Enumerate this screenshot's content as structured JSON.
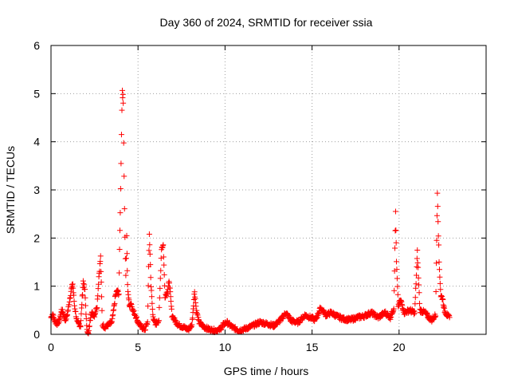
{
  "chart_data": {
    "type": "scatter",
    "title": "Day 360 of 2024, SRMTID for receiver ssia",
    "xlabel": "GPS time / hours",
    "ylabel": "SRMTID / TECUs",
    "xlim": [
      0,
      25
    ],
    "ylim": [
      0,
      6
    ],
    "xticks": [
      "0",
      "5",
      "10",
      "15",
      "20"
    ],
    "yticks": [
      "0",
      "1",
      "2",
      "3",
      "4",
      "5",
      "6"
    ],
    "grid": true,
    "marker": "plus",
    "color": "#ff0000",
    "series": [
      {
        "name": "SRMTID",
        "anchors": [
          [
            0.0,
            0.35
          ],
          [
            0.1,
            0.42
          ],
          [
            0.2,
            0.28
          ],
          [
            0.35,
            0.22
          ],
          [
            0.5,
            0.3
          ],
          [
            0.6,
            0.5
          ],
          [
            0.7,
            0.45
          ],
          [
            0.8,
            0.3
          ],
          [
            0.9,
            0.35
          ],
          [
            1.0,
            0.55
          ],
          [
            1.15,
            0.9
          ],
          [
            1.25,
            1.05
          ],
          [
            1.35,
            0.6
          ],
          [
            1.5,
            0.25
          ],
          [
            1.7,
            0.18
          ],
          [
            1.85,
            1.1
          ],
          [
            1.95,
            0.9
          ],
          [
            2.05,
            0.15
          ],
          [
            2.15,
            0.0
          ],
          [
            2.3,
            0.45
          ],
          [
            2.5,
            0.4
          ],
          [
            2.65,
            0.6
          ],
          [
            2.75,
            1.2
          ],
          [
            2.85,
            1.6
          ],
          [
            2.95,
            0.2
          ],
          [
            3.1,
            0.15
          ],
          [
            3.3,
            0.2
          ],
          [
            3.5,
            0.25
          ],
          [
            3.6,
            0.5
          ],
          [
            3.7,
            0.8
          ],
          [
            3.8,
            0.9
          ],
          [
            3.9,
            0.85
          ],
          [
            4.0,
            3.0
          ],
          [
            4.05,
            4.2
          ],
          [
            4.1,
            5.1
          ],
          [
            4.15,
            4.8
          ],
          [
            4.2,
            3.3
          ],
          [
            4.25,
            2.0
          ],
          [
            4.3,
            1.2
          ],
          [
            4.35,
            2.0
          ],
          [
            4.4,
            1.0
          ],
          [
            4.5,
            0.6
          ],
          [
            4.6,
            0.65
          ],
          [
            4.7,
            0.5
          ],
          [
            4.85,
            0.4
          ],
          [
            5.0,
            0.25
          ],
          [
            5.2,
            0.15
          ],
          [
            5.4,
            0.1
          ],
          [
            5.55,
            0.25
          ],
          [
            5.65,
            2.1
          ],
          [
            5.75,
            1.0
          ],
          [
            5.85,
            0.4
          ],
          [
            6.0,
            0.2
          ],
          [
            6.2,
            0.3
          ],
          [
            6.35,
            1.8
          ],
          [
            6.45,
            1.85
          ],
          [
            6.55,
            0.8
          ],
          [
            6.7,
            0.9
          ],
          [
            6.8,
            1.1
          ],
          [
            6.95,
            0.4
          ],
          [
            7.1,
            0.3
          ],
          [
            7.3,
            0.2
          ],
          [
            7.6,
            0.15
          ],
          [
            7.9,
            0.1
          ],
          [
            8.1,
            0.2
          ],
          [
            8.25,
            0.9
          ],
          [
            8.35,
            0.5
          ],
          [
            8.5,
            0.25
          ],
          [
            8.8,
            0.15
          ],
          [
            9.1,
            0.1
          ],
          [
            9.4,
            0.08
          ],
          [
            9.7,
            0.1
          ],
          [
            9.9,
            0.2
          ],
          [
            10.1,
            0.25
          ],
          [
            10.4,
            0.15
          ],
          [
            10.8,
            0.08
          ],
          [
            11.2,
            0.12
          ],
          [
            11.6,
            0.18
          ],
          [
            12.0,
            0.25
          ],
          [
            12.4,
            0.22
          ],
          [
            12.8,
            0.18
          ],
          [
            13.2,
            0.3
          ],
          [
            13.5,
            0.45
          ],
          [
            13.8,
            0.28
          ],
          [
            14.2,
            0.25
          ],
          [
            14.6,
            0.4
          ],
          [
            14.9,
            0.35
          ],
          [
            15.2,
            0.3
          ],
          [
            15.5,
            0.55
          ],
          [
            15.8,
            0.4
          ],
          [
            16.1,
            0.45
          ],
          [
            16.4,
            0.38
          ],
          [
            16.8,
            0.32
          ],
          [
            17.2,
            0.3
          ],
          [
            17.6,
            0.35
          ],
          [
            18.0,
            0.38
          ],
          [
            18.4,
            0.45
          ],
          [
            18.8,
            0.35
          ],
          [
            19.2,
            0.45
          ],
          [
            19.5,
            0.35
          ],
          [
            19.7,
            0.55
          ],
          [
            19.8,
            2.55
          ],
          [
            19.85,
            1.5
          ],
          [
            19.95,
            0.6
          ],
          [
            20.1,
            0.7
          ],
          [
            20.3,
            0.45
          ],
          [
            20.6,
            0.5
          ],
          [
            20.9,
            0.45
          ],
          [
            21.05,
            1.7
          ],
          [
            21.2,
            0.5
          ],
          [
            21.5,
            0.45
          ],
          [
            21.7,
            0.35
          ],
          [
            21.9,
            0.3
          ],
          [
            22.1,
            0.4
          ],
          [
            22.2,
            3.0
          ],
          [
            22.3,
            1.5
          ],
          [
            22.4,
            0.8
          ],
          [
            22.5,
            0.75
          ],
          [
            22.6,
            0.5
          ],
          [
            22.8,
            0.38
          ],
          [
            22.9,
            0.35
          ]
        ]
      }
    ]
  }
}
